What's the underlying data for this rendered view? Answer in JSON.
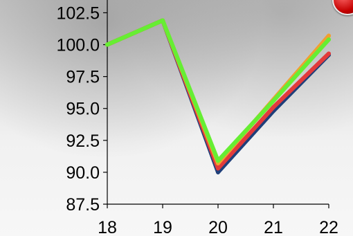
{
  "chart_data": {
    "type": "line",
    "x": [
      18,
      19,
      20,
      21,
      22
    ],
    "xticks": [
      "18",
      "19",
      "20",
      "21",
      "22"
    ],
    "yticks": [
      "102.5",
      "100.0",
      "97.5",
      "95.0",
      "92.5",
      "90.0",
      "87.5"
    ],
    "ylim": [
      87.5,
      103.5
    ],
    "xlim": [
      18,
      22
    ],
    "grid": false,
    "series": [
      {
        "color": "#1f3f7a",
        "values": [
          100.0,
          101.9,
          90.0,
          94.8,
          99.2
        ]
      },
      {
        "color": "#e23b3b",
        "values": [
          100.0,
          101.9,
          90.3,
          95.1,
          99.3
        ]
      },
      {
        "color": "#f0a030",
        "values": [
          100.0,
          101.9,
          90.7,
          95.7,
          100.7
        ]
      },
      {
        "color": "#66ee33",
        "values": [
          100.0,
          101.9,
          90.9,
          95.6,
          100.4
        ]
      }
    ]
  }
}
